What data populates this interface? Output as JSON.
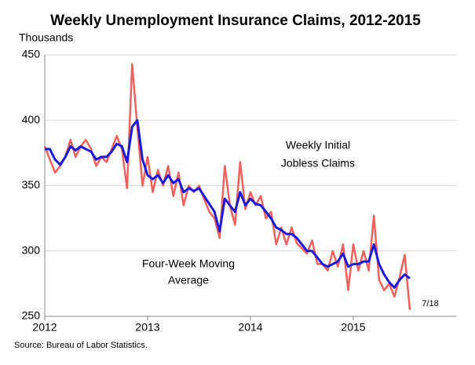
{
  "chart_data": {
    "type": "line",
    "title": "Weekly Unemployment Insurance Claims, 2012-2015",
    "y_label": "Thousands",
    "source": "Source: Bureau of Labor Statistics.",
    "annotations": [
      "Weekly Initial",
      "Jobless Claims",
      "Four-Week Moving",
      "Average",
      "7/18"
    ],
    "x": [
      2012.0,
      2012.05,
      2012.1,
      2012.15,
      2012.2,
      2012.25,
      2012.3,
      2012.35,
      2012.4,
      2012.45,
      2012.5,
      2012.55,
      2012.6,
      2012.65,
      2012.7,
      2012.75,
      2012.8,
      2012.85,
      2012.9,
      2012.95,
      2013.0,
      2013.05,
      2013.1,
      2013.15,
      2013.2,
      2013.25,
      2013.3,
      2013.35,
      2013.4,
      2013.45,
      2013.5,
      2013.55,
      2013.6,
      2013.65,
      2013.7,
      2013.75,
      2013.8,
      2013.85,
      2013.9,
      2013.95,
      2014.0,
      2014.05,
      2014.1,
      2014.15,
      2014.2,
      2014.25,
      2014.3,
      2014.35,
      2014.4,
      2014.45,
      2014.5,
      2014.55,
      2014.6,
      2014.65,
      2014.7,
      2014.75,
      2014.8,
      2014.85,
      2014.9,
      2014.95,
      2015.0,
      2015.05,
      2015.1,
      2015.15,
      2015.2,
      2015.25,
      2015.3,
      2015.35,
      2015.4,
      2015.45,
      2015.5,
      2015.55
    ],
    "series": [
      {
        "name": "Weekly Initial Jobless Claims",
        "color": "#f0605d",
        "width": 2.5,
        "values": [
          380,
          370,
          360,
          365,
          372,
          385,
          372,
          380,
          385,
          378,
          365,
          372,
          368,
          378,
          388,
          378,
          348,
          443,
          395,
          350,
          372,
          345,
          362,
          350,
          365,
          342,
          360,
          335,
          350,
          345,
          350,
          340,
          330,
          325,
          310,
          365,
          335,
          320,
          368,
          332,
          345,
          335,
          342,
          325,
          330,
          305,
          318,
          305,
          318,
          306,
          302,
          298,
          308,
          290,
          290,
          285,
          300,
          288,
          305,
          270,
          305,
          285,
          300,
          285,
          327,
          278,
          270,
          275,
          265,
          280,
          297,
          255
        ]
      },
      {
        "name": "Four-Week Moving Average",
        "color": "#1a1adb",
        "width": 3,
        "values": [
          378,
          378,
          370,
          366,
          372,
          380,
          377,
          380,
          378,
          376,
          370,
          372,
          372,
          376,
          382,
          380,
          368,
          395,
          400,
          370,
          358,
          355,
          358,
          352,
          358,
          352,
          355,
          345,
          348,
          346,
          348,
          342,
          336,
          330,
          315,
          340,
          335,
          330,
          345,
          335,
          340,
          336,
          335,
          330,
          325,
          318,
          316,
          313,
          313,
          310,
          305,
          300,
          300,
          295,
          290,
          288,
          290,
          292,
          298,
          288,
          290,
          290,
          292,
          292,
          305,
          290,
          282,
          276,
          272,
          278,
          282,
          279
        ]
      }
    ],
    "xlim": [
      2012,
      2016
    ],
    "xticks": [
      2012,
      2013,
      2014,
      2015
    ],
    "ylim": [
      250,
      450
    ],
    "yticks": [
      250,
      300,
      350,
      400,
      450
    ],
    "grid": true
  }
}
